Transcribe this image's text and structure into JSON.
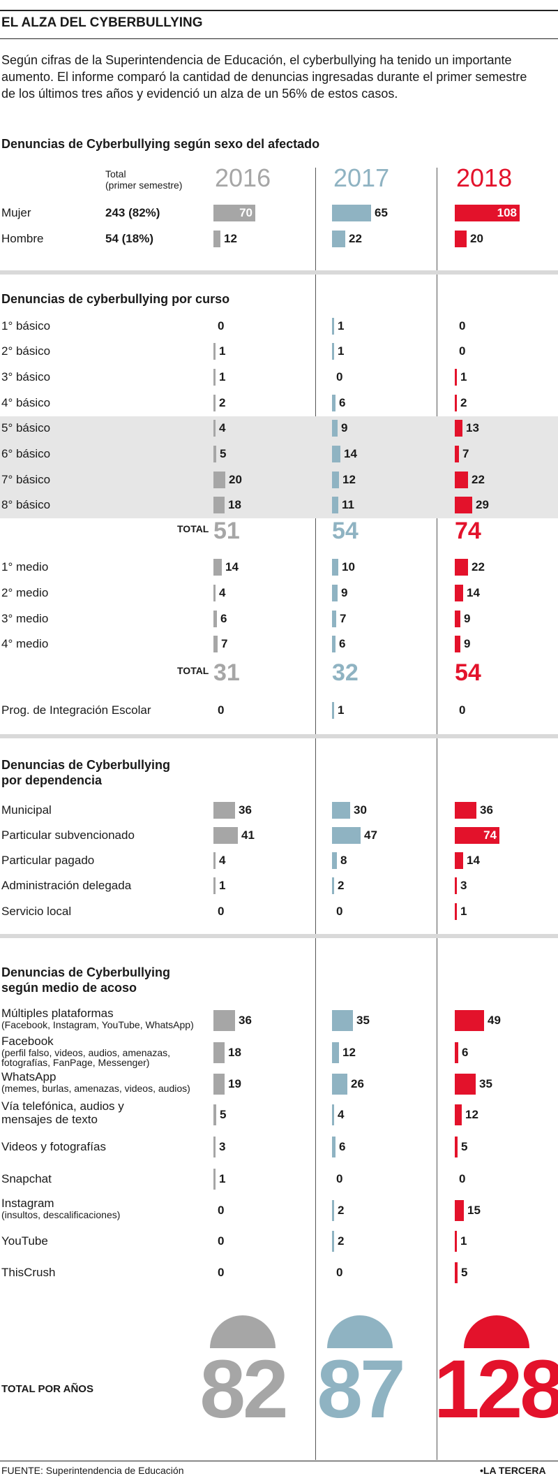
{
  "title": "EL ALZA DEL CYBERBULLYING",
  "intro": [
    "Según cifras de la Superintendencia de Educación, el cyberbullying ha tenido un importante",
    "aumento. El informe comparó la cantidad de denuncias ingresadas durante el primer semestre",
    "de los últimos tres años y evidenció un alza de un 56% de estos casos."
  ],
  "colors": {
    "y2016": "#a6a6a6",
    "y2017": "#8fb3c2",
    "y2018": "#e3122b",
    "band": "#e6e6e6"
  },
  "years": [
    "2016",
    "2017",
    "2018"
  ],
  "total_col": {
    "label": "Total",
    "sub": "(primer semestre)"
  },
  "total_label": "TOTAL",
  "chart_data": [
    {
      "type": "bar",
      "title": "Denuncias de Cyberbullying según sexo del afectado",
      "categories": [
        "Mujer",
        "Hombre"
      ],
      "totals": [
        "243 (82%)",
        "54 (18%)"
      ],
      "series": [
        {
          "name": "2016",
          "values": [
            70,
            12
          ]
        },
        {
          "name": "2017",
          "values": [
            65,
            22
          ]
        },
        {
          "name": "2018",
          "values": [
            108,
            20
          ]
        }
      ]
    },
    {
      "type": "bar",
      "title": "Denuncias de cyberbullying por curso",
      "categories": [
        "1° básico",
        "2° básico",
        "3° básico",
        "4° básico",
        "5° básico",
        "6° básico",
        "7° básico",
        "8° básico",
        "1° medio",
        "2° medio",
        "3° medio",
        "4° medio",
        "Prog. de Integración Escolar"
      ],
      "series": [
        {
          "name": "2016",
          "values": [
            0,
            1,
            1,
            2,
            4,
            5,
            20,
            18,
            14,
            4,
            6,
            7,
            0
          ]
        },
        {
          "name": "2017",
          "values": [
            1,
            1,
            0,
            6,
            9,
            14,
            12,
            11,
            10,
            9,
            7,
            6,
            1
          ]
        },
        {
          "name": "2018",
          "values": [
            0,
            0,
            1,
            2,
            13,
            7,
            22,
            29,
            22,
            14,
            9,
            9,
            0
          ]
        }
      ],
      "subtotals": [
        {
          "label": "TOTAL",
          "values": [
            51,
            54,
            74
          ]
        },
        {
          "label": "TOTAL",
          "values": [
            31,
            32,
            54
          ]
        }
      ]
    },
    {
      "type": "bar",
      "title": [
        "Denuncias de Cyberbullying",
        "por dependencia"
      ],
      "categories": [
        "Municipal",
        "Particular subvencionado",
        "Particular pagado",
        "Administración delegada",
        "Servicio local"
      ],
      "series": [
        {
          "name": "2016",
          "values": [
            36,
            41,
            4,
            1,
            0
          ]
        },
        {
          "name": "2017",
          "values": [
            30,
            47,
            8,
            2,
            0
          ]
        },
        {
          "name": "2018",
          "values": [
            36,
            74,
            14,
            3,
            1
          ]
        }
      ]
    },
    {
      "type": "bar",
      "title": [
        "Denuncias de Cyberbullying",
        "según medio de acoso"
      ],
      "categories": [
        {
          "name": "Múltiples plataformas",
          "sub": [
            "(Facebook, Instagram, YouTube, WhatsApp)"
          ]
        },
        {
          "name": "Facebook",
          "sub": [
            "(perfil falso, videos, audios, amenazas,",
            "fotografías, FanPage, Messenger)"
          ]
        },
        {
          "name": "WhatsApp",
          "sub": [
            "(memes, burlas, amenazas, videos, audios)"
          ]
        },
        {
          "name": "Vía telefónica, audios y",
          "sub": [
            "mensajes de texto"
          ],
          "sub_large": true
        },
        {
          "name": "Videos y fotografías",
          "sub": []
        },
        {
          "name": "Snapchat",
          "sub": []
        },
        {
          "name": "Instagram",
          "sub": [
            "(insultos, descalificaciones)"
          ]
        },
        {
          "name": "YouTube",
          "sub": []
        },
        {
          "name": "ThisCrush",
          "sub": []
        }
      ],
      "series": [
        {
          "name": "2016",
          "values": [
            36,
            18,
            19,
            5,
            3,
            1,
            0,
            0,
            0
          ]
        },
        {
          "name": "2017",
          "values": [
            35,
            12,
            26,
            4,
            6,
            0,
            2,
            2,
            0
          ]
        },
        {
          "name": "2018",
          "values": [
            49,
            6,
            35,
            12,
            5,
            0,
            15,
            1,
            5
          ]
        }
      ]
    },
    {
      "type": "bar",
      "title": "TOTAL POR AÑOS",
      "categories": [
        "2016",
        "2017",
        "2018"
      ],
      "values": [
        82,
        87,
        128
      ]
    }
  ],
  "footer": {
    "source": "FUENTE: Superintendencia de Educación",
    "brand": "•LA TERCERA"
  }
}
